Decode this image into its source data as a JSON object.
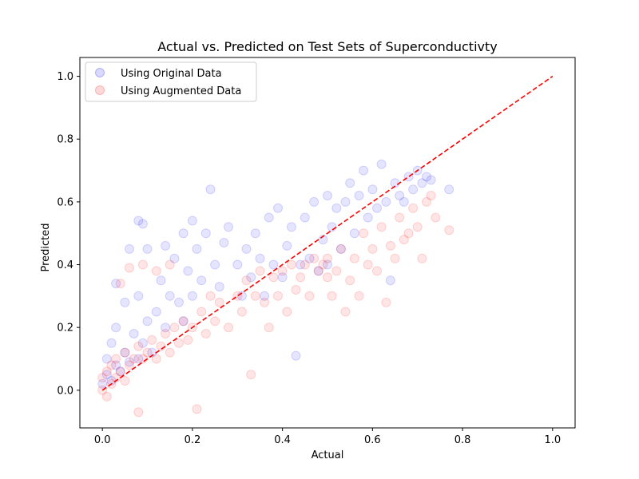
{
  "chart_data": {
    "type": "scatter",
    "title": "Actual vs. Predicted on Test Sets of Superconductivty",
    "xlabel": "Actual",
    "ylabel": "Predicted",
    "xlim": [
      -0.05,
      1.05
    ],
    "ylim": [
      -0.12,
      1.06
    ],
    "xticks": [
      0.0,
      0.2,
      0.4,
      0.6,
      0.8,
      1.0
    ],
    "yticks": [
      0.0,
      0.2,
      0.4,
      0.6,
      0.8,
      1.0
    ],
    "grid": false,
    "legend_position": "upper-left",
    "series": [
      {
        "name": "Using Original Data",
        "color": "#0000ff",
        "alpha": 0.1,
        "points": [
          [
            0.0,
            0.02
          ],
          [
            0.01,
            0.05
          ],
          [
            0.01,
            0.1
          ],
          [
            0.02,
            0.03
          ],
          [
            0.02,
            0.15
          ],
          [
            0.03,
            0.08
          ],
          [
            0.03,
            0.2
          ],
          [
            0.04,
            0.06
          ],
          [
            0.05,
            0.12
          ],
          [
            0.05,
            0.28
          ],
          [
            0.06,
            0.09
          ],
          [
            0.07,
            0.18
          ],
          [
            0.08,
            0.1
          ],
          [
            0.08,
            0.3
          ],
          [
            0.09,
            0.15
          ],
          [
            0.1,
            0.22
          ],
          [
            0.1,
            0.45
          ],
          [
            0.11,
            0.12
          ],
          [
            0.12,
            0.25
          ],
          [
            0.13,
            0.35
          ],
          [
            0.14,
            0.2
          ],
          [
            0.15,
            0.3
          ],
          [
            0.16,
            0.42
          ],
          [
            0.17,
            0.28
          ],
          [
            0.18,
            0.22
          ],
          [
            0.19,
            0.38
          ],
          [
            0.2,
            0.3
          ],
          [
            0.21,
            0.45
          ],
          [
            0.22,
            0.35
          ],
          [
            0.23,
            0.5
          ],
          [
            0.24,
            0.64
          ],
          [
            0.25,
            0.4
          ],
          [
            0.26,
            0.33
          ],
          [
            0.27,
            0.47
          ],
          [
            0.28,
            0.52
          ],
          [
            0.3,
            0.4
          ],
          [
            0.31,
            0.3
          ],
          [
            0.32,
            0.45
          ],
          [
            0.33,
            0.36
          ],
          [
            0.34,
            0.5
          ],
          [
            0.35,
            0.42
          ],
          [
            0.36,
            0.3
          ],
          [
            0.37,
            0.55
          ],
          [
            0.38,
            0.4
          ],
          [
            0.39,
            0.58
          ],
          [
            0.4,
            0.36
          ],
          [
            0.41,
            0.46
          ],
          [
            0.42,
            0.52
          ],
          [
            0.43,
            0.11
          ],
          [
            0.44,
            0.4
          ],
          [
            0.45,
            0.55
          ],
          [
            0.46,
            0.42
          ],
          [
            0.47,
            0.6
          ],
          [
            0.48,
            0.38
          ],
          [
            0.49,
            0.48
          ],
          [
            0.5,
            0.62
          ],
          [
            0.5,
            0.4
          ],
          [
            0.51,
            0.52
          ],
          [
            0.52,
            0.58
          ],
          [
            0.53,
            0.45
          ],
          [
            0.54,
            0.6
          ],
          [
            0.55,
            0.66
          ],
          [
            0.56,
            0.5
          ],
          [
            0.57,
            0.62
          ],
          [
            0.58,
            0.7
          ],
          [
            0.59,
            0.55
          ],
          [
            0.6,
            0.64
          ],
          [
            0.61,
            0.58
          ],
          [
            0.62,
            0.72
          ],
          [
            0.63,
            0.6
          ],
          [
            0.64,
            0.35
          ],
          [
            0.65,
            0.66
          ],
          [
            0.66,
            0.62
          ],
          [
            0.67,
            0.6
          ],
          [
            0.68,
            0.68
          ],
          [
            0.69,
            0.64
          ],
          [
            0.7,
            0.7
          ],
          [
            0.71,
            0.66
          ],
          [
            0.72,
            0.68
          ],
          [
            0.73,
            0.67
          ],
          [
            0.77,
            0.64
          ],
          [
            0.08,
            0.54
          ],
          [
            0.09,
            0.53
          ],
          [
            0.06,
            0.45
          ],
          [
            0.03,
            0.34
          ],
          [
            0.14,
            0.46
          ],
          [
            0.18,
            0.5
          ],
          [
            0.2,
            0.54
          ]
        ]
      },
      {
        "name": "Using Augmented Data",
        "color": "#ff0000",
        "alpha": 0.1,
        "points": [
          [
            0.0,
            0.0
          ],
          [
            0.0,
            0.04
          ],
          [
            0.01,
            -0.02
          ],
          [
            0.01,
            0.06
          ],
          [
            0.02,
            0.02
          ],
          [
            0.02,
            0.08
          ],
          [
            0.03,
            0.04
          ],
          [
            0.03,
            0.1
          ],
          [
            0.04,
            0.06
          ],
          [
            0.05,
            0.03
          ],
          [
            0.05,
            0.12
          ],
          [
            0.06,
            0.08
          ],
          [
            0.07,
            0.1
          ],
          [
            0.08,
            -0.07
          ],
          [
            0.08,
            0.14
          ],
          [
            0.09,
            0.1
          ],
          [
            0.1,
            0.12
          ],
          [
            0.11,
            0.16
          ],
          [
            0.12,
            0.1
          ],
          [
            0.13,
            0.14
          ],
          [
            0.14,
            0.18
          ],
          [
            0.15,
            0.12
          ],
          [
            0.16,
            0.2
          ],
          [
            0.17,
            0.15
          ],
          [
            0.18,
            0.22
          ],
          [
            0.19,
            0.16
          ],
          [
            0.2,
            0.2
          ],
          [
            0.21,
            -0.06
          ],
          [
            0.22,
            0.25
          ],
          [
            0.23,
            0.18
          ],
          [
            0.24,
            0.3
          ],
          [
            0.25,
            0.22
          ],
          [
            0.26,
            0.28
          ],
          [
            0.28,
            0.2
          ],
          [
            0.3,
            0.3
          ],
          [
            0.31,
            0.25
          ],
          [
            0.32,
            0.35
          ],
          [
            0.33,
            0.05
          ],
          [
            0.34,
            0.3
          ],
          [
            0.35,
            0.38
          ],
          [
            0.36,
            0.28
          ],
          [
            0.37,
            0.2
          ],
          [
            0.38,
            0.36
          ],
          [
            0.39,
            0.3
          ],
          [
            0.4,
            0.38
          ],
          [
            0.41,
            0.25
          ],
          [
            0.42,
            0.4
          ],
          [
            0.43,
            0.32
          ],
          [
            0.44,
            0.36
          ],
          [
            0.45,
            0.4
          ],
          [
            0.46,
            0.3
          ],
          [
            0.47,
            0.42
          ],
          [
            0.48,
            0.38
          ],
          [
            0.49,
            0.4
          ],
          [
            0.5,
            0.42
          ],
          [
            0.5,
            0.36
          ],
          [
            0.51,
            0.3
          ],
          [
            0.52,
            0.38
          ],
          [
            0.53,
            0.45
          ],
          [
            0.54,
            0.25
          ],
          [
            0.55,
            0.35
          ],
          [
            0.56,
            0.42
          ],
          [
            0.57,
            0.3
          ],
          [
            0.58,
            0.5
          ],
          [
            0.59,
            0.4
          ],
          [
            0.6,
            0.45
          ],
          [
            0.61,
            0.38
          ],
          [
            0.62,
            0.52
          ],
          [
            0.63,
            0.28
          ],
          [
            0.64,
            0.46
          ],
          [
            0.65,
            0.42
          ],
          [
            0.66,
            0.55
          ],
          [
            0.67,
            0.48
          ],
          [
            0.68,
            0.5
          ],
          [
            0.69,
            0.58
          ],
          [
            0.7,
            0.52
          ],
          [
            0.71,
            0.42
          ],
          [
            0.72,
            0.6
          ],
          [
            0.73,
            0.62
          ],
          [
            0.74,
            0.55
          ],
          [
            0.77,
            0.51
          ],
          [
            0.04,
            0.34
          ],
          [
            0.06,
            0.39
          ],
          [
            0.09,
            0.4
          ],
          [
            0.12,
            0.38
          ],
          [
            0.15,
            0.4
          ]
        ]
      }
    ],
    "reference_line": {
      "style": "dashed",
      "color": "#ff0000",
      "x": [
        0.0,
        1.0
      ],
      "y": [
        0.0,
        1.0
      ]
    }
  }
}
